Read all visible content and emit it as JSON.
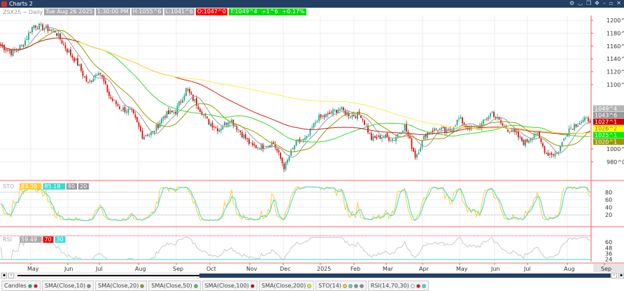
{
  "window": {
    "title": "Charts 2",
    "buttons": [
      "gear-icon",
      "minimize-to-tray-icon",
      "layers-icon",
      "move-icon",
      "minimize-icon",
      "restore-icon",
      "close-icon"
    ]
  },
  "info": {
    "symbol": "ZSX25",
    "sep": "~",
    "interval": "Daily",
    "date": "Tue Aug 26 2025",
    "time": "1:30:00 PM",
    "high": "H:1055^6",
    "low": "L:1041^6",
    "open": "O:1047^0",
    "last": "T:1049^4",
    "change": "+1^6",
    "change_pct": "+0.17%"
  },
  "price_axis": {
    "ticks": [
      "1200^0",
      "1180^0",
      "1160^0",
      "1140^0",
      "1120^0",
      "1100^0",
      "1000^0",
      "980^0"
    ],
    "tick_values": [
      1200,
      1180,
      1160,
      1140,
      1120,
      1100,
      1000,
      980
    ],
    "markers": [
      {
        "text": "1049^4",
        "color": "#b4b4b4"
      },
      {
        "text": "1043^6",
        "color": "#9a9a9a"
      },
      {
        "text": "1027^1",
        "color": "#d00000"
      },
      {
        "text": "1026^2",
        "color": "#ffff00"
      },
      {
        "text": "1025^1",
        "color": "#00ee00"
      },
      {
        "text": "1020^1",
        "color": "#999900"
      }
    ]
  },
  "sto": {
    "label": "STO",
    "k": "83.39",
    "d": "85.18",
    "upper": "80",
    "lower": "20",
    "ticks": [
      "80",
      "60",
      "40",
      "20"
    ]
  },
  "rsi": {
    "label": "RSI",
    "value": "59.49",
    "upper": "70",
    "lower": "30",
    "ticks": [
      "60",
      "48",
      "36",
      "24"
    ]
  },
  "time_axis": [
    "May",
    "Jun",
    "Jul",
    "Aug",
    "Sep",
    "Oct",
    "Nov",
    "Dec",
    "2025",
    "Feb",
    "Mar",
    "Apr",
    "May",
    "Jun",
    "Jul",
    "Aug",
    "Sep"
  ],
  "chart_data": {
    "type": "candlestick",
    "approx_closes": [
      1161,
      1150,
      1161,
      1193,
      1188,
      1183,
      1156,
      1134,
      1101,
      1123,
      1080,
      1063,
      1058,
      1020,
      1026,
      1053,
      1058,
      1093,
      1069,
      1042,
      1031,
      1047,
      1026,
      1004,
      1004,
      1009,
      971,
      1009,
      1015,
      1047,
      1053,
      1063,
      1053,
      1053,
      1015,
      1020,
      1015,
      1036,
      988,
      1026,
      1031,
      1026,
      1047,
      1031,
      1036,
      1058,
      1036,
      1026,
      1009,
      1026,
      993,
      993,
      1031,
      1042,
      1047
    ]
  },
  "colors": {
    "up": "#1aa88a",
    "down": "#e01010",
    "sma10": "#9a9a9a",
    "sma20": "#999900",
    "sma50": "#33dd33",
    "sma100": "#cc2222",
    "sma200": "#f5f04a",
    "sto_k": "#ffcc33",
    "sto_d": "#33ddcc",
    "rsi": "#c8c8c8"
  },
  "legend": [
    {
      "label": "Candles",
      "dots": [
        "#1aa88a",
        "#e01010"
      ]
    },
    {
      "label": "SMA(Close,10)",
      "dots": [
        "#888"
      ]
    },
    {
      "label": "SMA(Close,20)",
      "dots": [
        "#999900"
      ]
    },
    {
      "label": "SMA(Close,50)",
      "dots": [
        "#22dd22"
      ]
    },
    {
      "label": "SMA(Close,100)",
      "dots": [
        "#cc0000"
      ]
    },
    {
      "label": "SMA(Close,200)",
      "dots": [
        "#eeee00"
      ]
    },
    {
      "label": "STO(14)",
      "dots": [
        "#ffcc00",
        "#33ddcc",
        "#888",
        "#888"
      ]
    },
    {
      "label": "RSI(14,70,30)",
      "dots": [
        "#fff",
        "#e00",
        "#3dd"
      ]
    }
  ]
}
